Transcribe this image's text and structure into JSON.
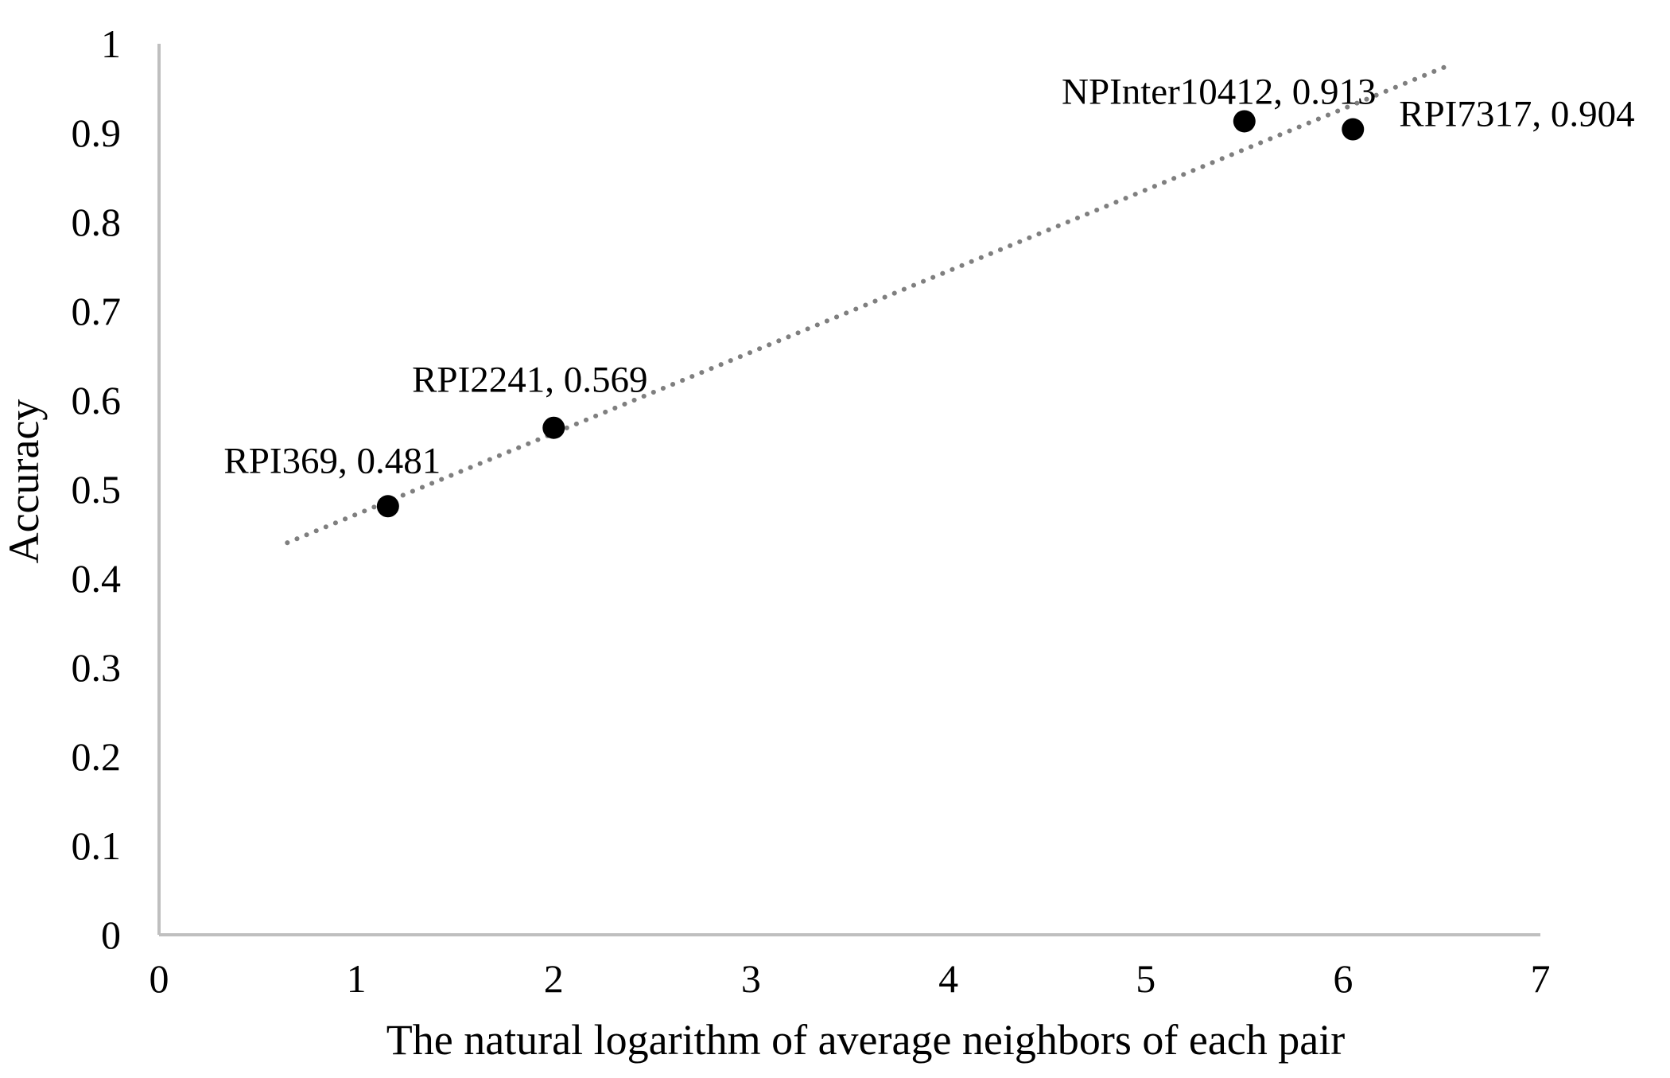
{
  "chart_data": {
    "type": "scatter",
    "title": "",
    "xlabel": "The natural logarithm of average neighbors of each pair",
    "ylabel": "Accuracy",
    "xlim": [
      0,
      7
    ],
    "ylim": [
      0,
      1
    ],
    "x_ticks": [
      "0",
      "1",
      "2",
      "3",
      "4",
      "5",
      "6",
      "7"
    ],
    "y_ticks": [
      "0",
      "0.1",
      "0.2",
      "0.3",
      "0.4",
      "0.5",
      "0.6",
      "0.7",
      "0.8",
      "0.9",
      "1"
    ],
    "grid": false,
    "legend": "none",
    "points": [
      {
        "x": 1.16,
        "y": 0.481,
        "label": "RPI369, 0.481"
      },
      {
        "x": 2.0,
        "y": 0.569,
        "label": "RPI2241, 0.569"
      },
      {
        "x": 5.5,
        "y": 0.913,
        "label": "NPInter10412, 0.913"
      },
      {
        "x": 6.05,
        "y": 0.904,
        "label": "RPI7317, 0.904"
      }
    ],
    "trendline": {
      "style": "dotted",
      "x_start": 0.65,
      "x_end": 6.55,
      "y_start": 0.44,
      "y_end": 0.977
    },
    "colors": {
      "point": "#000000",
      "trendline": "#7f7f7f",
      "axis": "#bfbfbf"
    }
  }
}
